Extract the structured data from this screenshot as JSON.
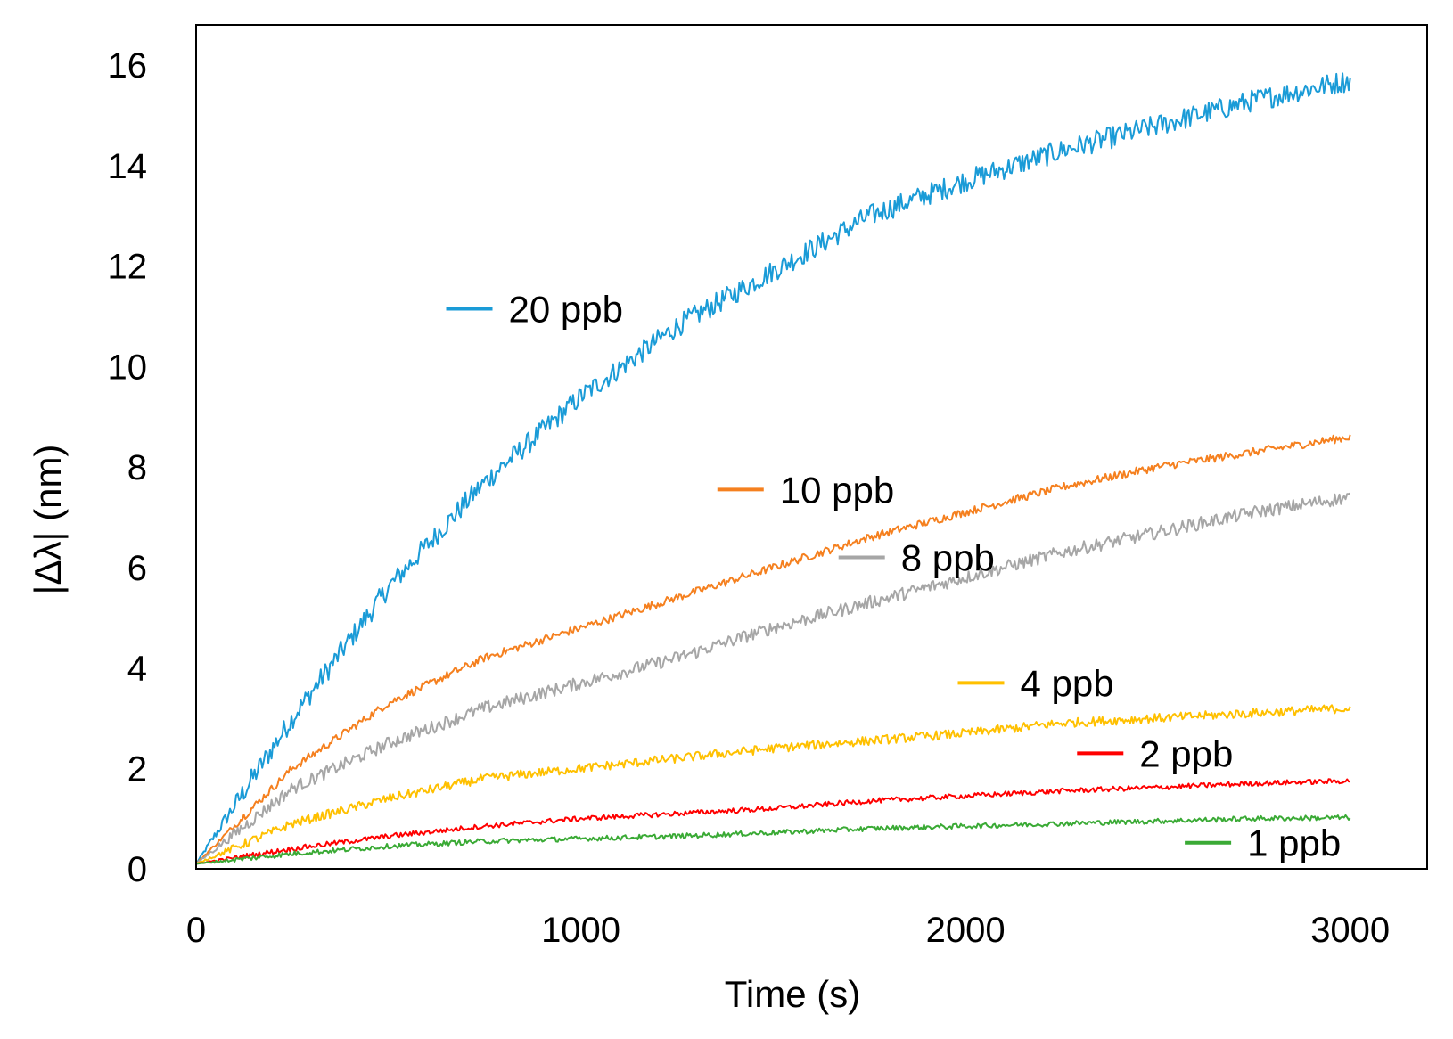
{
  "chart_data": {
    "type": "line",
    "title": "",
    "xlabel": "Time (s)",
    "ylabel": "|Δλ| (nm)",
    "xlim": [
      0,
      3200
    ],
    "ylim": [
      0,
      16.8
    ],
    "xticks": [
      0,
      1000,
      2000,
      3000
    ],
    "yticks": [
      0,
      2,
      4,
      6,
      8,
      10,
      12,
      14,
      16
    ],
    "xtick_labels": [
      "0",
      "1000",
      "2000",
      "3000"
    ],
    "ytick_labels": [
      "0",
      "2",
      "4",
      "6",
      "8",
      "10",
      "12",
      "14",
      "16"
    ],
    "grid": false,
    "legend_placement": "inline labels",
    "series": [
      {
        "name": "20 ppb",
        "color": "#1a9bd7",
        "x": [
          0,
          250,
          500,
          750,
          1000,
          1250,
          1500,
          1750,
          2000,
          2250,
          2500,
          2750,
          3000
        ],
        "y": [
          0.1,
          3.0,
          5.6,
          7.7,
          9.4,
          10.8,
          11.9,
          13.0,
          13.7,
          14.3,
          14.8,
          15.3,
          15.7
        ],
        "noise": 0.22
      },
      {
        "name": "10 ppb",
        "color": "#f5801f",
        "x": [
          0,
          250,
          500,
          750,
          1000,
          1250,
          1500,
          1750,
          2000,
          2250,
          2500,
          2750,
          3000
        ],
        "y": [
          0.1,
          2.0,
          3.3,
          4.2,
          4.8,
          5.4,
          6.0,
          6.6,
          7.1,
          7.6,
          8.0,
          8.3,
          8.6
        ],
        "noise": 0.08
      },
      {
        "name": "8 ppb",
        "color": "#a6a6a6",
        "x": [
          0,
          250,
          500,
          750,
          1000,
          1250,
          1500,
          1750,
          2000,
          2250,
          2500,
          2750,
          3000
        ],
        "y": [
          0.1,
          1.6,
          2.5,
          3.2,
          3.7,
          4.2,
          4.8,
          5.3,
          5.8,
          6.3,
          6.7,
          7.1,
          7.4
        ],
        "noise": 0.13
      },
      {
        "name": "4 ppb",
        "color": "#ffc000",
        "x": [
          0,
          250,
          500,
          750,
          1000,
          1250,
          1500,
          1750,
          2000,
          2250,
          2500,
          2750,
          3000
        ],
        "y": [
          0.1,
          0.9,
          1.4,
          1.8,
          2.0,
          2.2,
          2.4,
          2.55,
          2.7,
          2.9,
          3.0,
          3.1,
          3.2
        ],
        "noise": 0.09
      },
      {
        "name": "2 ppb",
        "color": "#ff0000",
        "x": [
          0,
          250,
          500,
          750,
          1000,
          1250,
          1500,
          1750,
          2000,
          2250,
          2500,
          2750,
          3000
        ],
        "y": [
          0.1,
          0.4,
          0.65,
          0.85,
          1.0,
          1.1,
          1.2,
          1.35,
          1.45,
          1.55,
          1.62,
          1.7,
          1.75
        ],
        "noise": 0.05
      },
      {
        "name": "1 ppb",
        "color": "#3aaa35",
        "x": [
          0,
          250,
          500,
          750,
          1000,
          1250,
          1500,
          1750,
          2000,
          2250,
          2500,
          2750,
          3000
        ],
        "y": [
          0.1,
          0.3,
          0.45,
          0.55,
          0.6,
          0.65,
          0.72,
          0.8,
          0.85,
          0.9,
          0.95,
          1.0,
          1.02
        ],
        "noise": 0.05
      }
    ],
    "labels": [
      {
        "series": "20 ppb",
        "text": "20 ppb",
        "x": 650,
        "y": 11.15
      },
      {
        "series": "10 ppb",
        "text": "10 ppb",
        "x": 1355,
        "y": 7.55
      },
      {
        "series": "8 ppb",
        "text": "8 ppb",
        "x": 1670,
        "y": 6.2
      },
      {
        "series": "4 ppb",
        "text": "4 ppb",
        "x": 1980,
        "y": 3.7
      },
      {
        "series": "2 ppb",
        "text": "2 ppb",
        "x": 2290,
        "y": 2.3
      },
      {
        "series": "1 ppb",
        "text": "1 ppb",
        "x": 2570,
        "y": 0.52
      }
    ]
  }
}
